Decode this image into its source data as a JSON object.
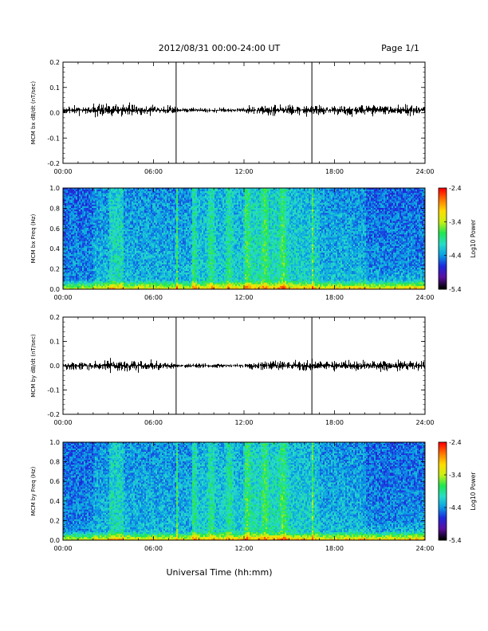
{
  "header": {
    "title": "2012/08/31  00:00-24:00 UT",
    "page": "Page 1/1"
  },
  "footer": {
    "xlabel": "Universal Time (hh:mm)"
  },
  "colors": {
    "trace": "#000000",
    "colormap": [
      "#000000",
      "#5a0fa0",
      "#1e28dc",
      "#0a9ee6",
      "#28dcc8",
      "#1ee650",
      "#c8f014",
      "#ffdc00",
      "#ff7800",
      "#ff0000"
    ]
  },
  "chart_data": [
    {
      "type": "line",
      "id": "bx_trace",
      "ylabel": "MCM bx dB/dt (nT/sec)",
      "xlim": [
        0,
        24
      ],
      "ylim": [
        -0.2,
        0.2
      ],
      "xticks": [
        "00:00",
        "06:00",
        "12:00",
        "18:00",
        "24:00"
      ],
      "yticks": [
        "0.2",
        "0.1",
        "0.0",
        "-0.1",
        "-0.2"
      ],
      "baseline": 0.01,
      "noise_amplitude": 0.02,
      "spikes": [
        {
          "time": "07:30",
          "min": -0.2,
          "max": 0.2
        },
        {
          "time": "16:30",
          "min": -0.2,
          "max": 0.2
        }
      ]
    },
    {
      "type": "heatmap",
      "id": "bx_spectrogram",
      "ylabel": "MCM bx Freq (Hz)",
      "xlim": [
        0,
        24
      ],
      "ylim": [
        0.0,
        1.0
      ],
      "xticks": [
        "00:00",
        "06:00",
        "12:00",
        "18:00",
        "24:00"
      ],
      "yticks": [
        "1.0",
        "0.8",
        "0.6",
        "0.4",
        "0.2",
        "0.0"
      ],
      "colorbar_label": "Log10 Power",
      "colorbar_ticks": [
        "-2.4",
        "-3.4",
        "-4.4",
        "-5.4"
      ],
      "color_range": [
        -5.4,
        -2.4
      ],
      "bright_lines": [
        "07:30",
        "16:30"
      ]
    },
    {
      "type": "line",
      "id": "by_trace",
      "ylabel": "MCM by dB/dt (nT/sec)",
      "xlim": [
        0,
        24
      ],
      "ylim": [
        -0.2,
        0.2
      ],
      "xticks": [
        "00:00",
        "06:00",
        "12:00",
        "18:00",
        "24:00"
      ],
      "yticks": [
        "0.2",
        "0.1",
        "0.0",
        "-0.1",
        "-0.2"
      ],
      "baseline": 0.0,
      "noise_amplitude": 0.02,
      "spikes": [
        {
          "time": "07:30",
          "min": -0.2,
          "max": 0.2
        },
        {
          "time": "16:30",
          "min": -0.2,
          "max": 0.2
        }
      ]
    },
    {
      "type": "heatmap",
      "id": "by_spectrogram",
      "ylabel": "MCM by Freq (Hz)",
      "xlim": [
        0,
        24
      ],
      "ylim": [
        0.0,
        1.0
      ],
      "xticks": [
        "00:00",
        "06:00",
        "12:00",
        "18:00",
        "24:00"
      ],
      "yticks": [
        "1.0",
        "0.8",
        "0.6",
        "0.4",
        "0.2",
        "0.0"
      ],
      "colorbar_label": "Log10 Power",
      "colorbar_ticks": [
        "-2.4",
        "-3.4",
        "-4.4",
        "-5.4"
      ],
      "color_range": [
        -5.4,
        -2.4
      ],
      "bright_lines": [
        "07:30",
        "16:30"
      ]
    }
  ]
}
